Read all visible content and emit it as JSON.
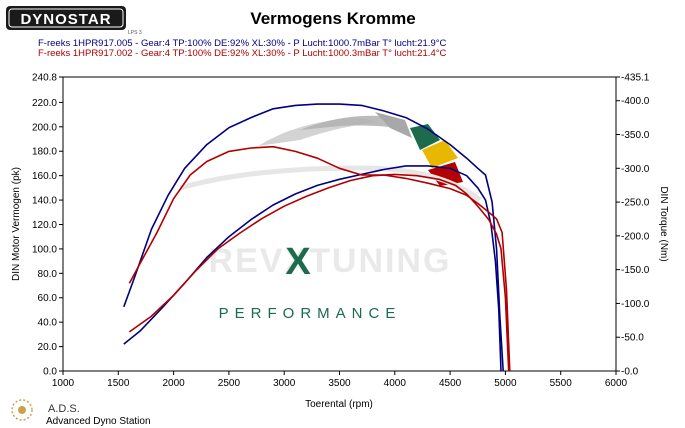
{
  "brand": {
    "logo_text": "DYNOSTAR",
    "logo_sub": "LPS 3",
    "footer_logo_text": "A.D.S.",
    "footer_sub": "Advanced Dyno Station"
  },
  "watermark": {
    "logo_text": "REVXTUNING",
    "tagline": "PERFORMANCE"
  },
  "chart_data": {
    "type": "line",
    "title": "Vermogens Kromme",
    "xlabel": "Toerental (rpm)",
    "ylabel_left": "DIN Motor Vermogen (pk)",
    "ylabel_right": "DIN Torque (Nm)",
    "xlim": [
      1000,
      6000
    ],
    "ylim_left": [
      0,
      240.8
    ],
    "ylim_right": [
      0,
      435.1
    ],
    "x_ticks": [
      "1000",
      "1500",
      "2000",
      "2500",
      "3000",
      "3500",
      "4000",
      "4500",
      "5000",
      "5500",
      "6000"
    ],
    "y_left_ticks": [
      "0.0",
      "20.0",
      "40.0",
      "60.0",
      "80.0",
      "100.0",
      "120.0",
      "140.0",
      "160.0",
      "180.0",
      "200.0",
      "220.0",
      "240.8"
    ],
    "y_right_ticks": [
      "-0.0",
      "-50.0",
      "-100.0",
      "-150.0",
      "-200.0",
      "-250.0",
      "-300.0",
      "-350.0",
      "-400.0",
      "-435.1"
    ],
    "grid": false,
    "legend": [
      {
        "text": "F-reeks 1HPR917.005 - Gear:4 TP:100% DE:92% XL:30%      - P Lucht:1000.7mBar T° lucht:21.9°C",
        "color": "#000080"
      },
      {
        "text": "F-reeks 1HPR917.002 - Gear:4 TP:100% DE:92% XL:30%      - P Lucht:1000.3mBar T° lucht:21.4°C",
        "color": "#b00000"
      }
    ],
    "series": [
      {
        "run": "1HPR917.005",
        "quantity": "power",
        "axis": "left",
        "color": "#000080",
        "x": [
          1550,
          1700,
          1900,
          2100,
          2300,
          2500,
          2700,
          2900,
          3100,
          3300,
          3500,
          3700,
          3900,
          4100,
          4300,
          4500,
          4650,
          4750,
          4820,
          4870,
          4910,
          4940,
          4960
        ],
        "y": [
          22,
          33,
          52,
          72,
          93,
          110,
          124,
          136,
          145,
          152,
          157,
          161,
          165,
          168,
          168,
          166,
          160,
          150,
          140,
          120,
          90,
          50,
          0
        ]
      },
      {
        "run": "1HPR917.005",
        "quantity": "torque",
        "axis": "right",
        "color": "#000080",
        "x": [
          1550,
          1650,
          1800,
          1950,
          2100,
          2300,
          2500,
          2700,
          2900,
          3100,
          3300,
          3500,
          3700,
          3900,
          4100,
          4300,
          4500,
          4650,
          4750,
          4820,
          4880,
          4920,
          4950,
          4980
        ],
        "y": [
          95,
          140,
          210,
          260,
          300,
          335,
          360,
          375,
          388,
          393,
          395,
          395,
          393,
          385,
          375,
          358,
          335,
          315,
          300,
          290,
          250,
          180,
          80,
          0
        ]
      },
      {
        "run": "1HPR917.002",
        "quantity": "power",
        "axis": "left",
        "color": "#b00000",
        "x": [
          1600,
          1800,
          2000,
          2200,
          2400,
          2600,
          2800,
          3000,
          3200,
          3400,
          3600,
          3800,
          4000,
          4200,
          4400,
          4550,
          4650,
          4750,
          4850,
          4920,
          4960,
          5000,
          5030
        ],
        "y": [
          32,
          45,
          62,
          82,
          100,
          113,
          125,
          135,
          143,
          150,
          156,
          160,
          161,
          160,
          157,
          152,
          145,
          135,
          124,
          112,
          100,
          60,
          0
        ]
      },
      {
        "run": "1HPR917.002",
        "quantity": "torque",
        "axis": "right",
        "color": "#b00000",
        "x": [
          1600,
          1700,
          1850,
          2000,
          2150,
          2300,
          2500,
          2700,
          2900,
          3100,
          3300,
          3500,
          3700,
          3900,
          4100,
          4300,
          4500,
          4650,
          4750,
          4850,
          4920,
          4970,
          5010,
          5040
        ],
        "y": [
          130,
          160,
          205,
          255,
          290,
          310,
          325,
          330,
          332,
          325,
          315,
          300,
          290,
          290,
          285,
          278,
          270,
          260,
          248,
          235,
          225,
          205,
          120,
          0
        ]
      }
    ]
  }
}
